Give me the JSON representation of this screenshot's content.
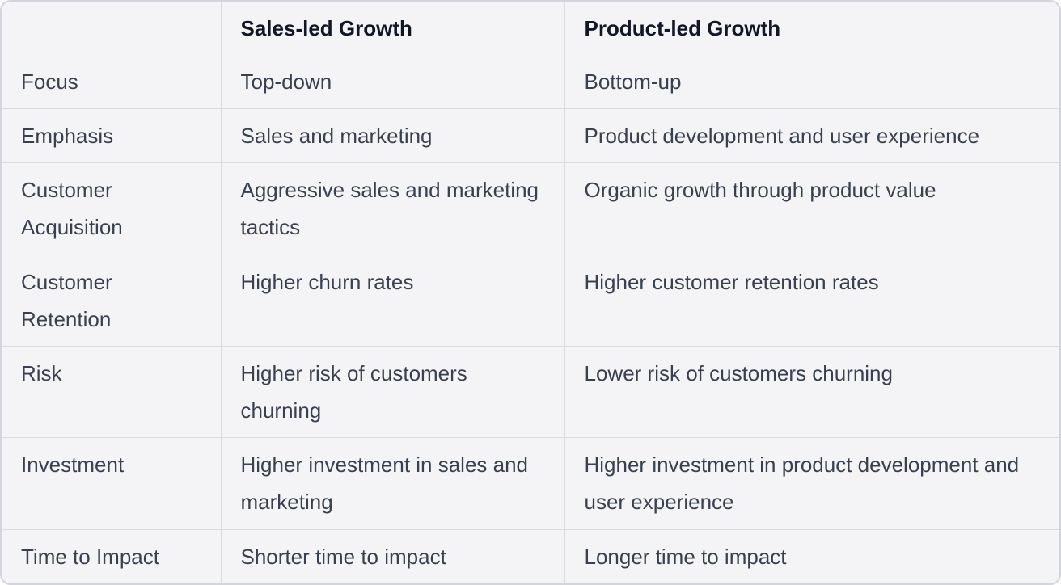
{
  "table": {
    "title": "Sales-led vs Product-led Growth comparison table",
    "colors": {
      "background": "#f4f4f6",
      "grid_border": "#d9d9e0",
      "outer_border": "#d4d4dd",
      "header_text": "#121725",
      "body_text": "#394150"
    },
    "header": {
      "col0": "",
      "col1": "Sales-led Growth",
      "col2": "Product-led Growth"
    },
    "rows": [
      {
        "label": "Focus",
        "sales": "Top-down",
        "product": "Bottom-up"
      },
      {
        "label": "Emphasis",
        "sales": "Sales and marketing",
        "product": "Product development and user experience"
      },
      {
        "label": "Customer Acquisition",
        "sales": "Aggressive sales and marketing tactics",
        "product": "Organic growth through product value"
      },
      {
        "label": "Customer Retention",
        "sales": "Higher churn rates",
        "product": "Higher customer retention rates"
      },
      {
        "label": "Risk",
        "sales": "Higher risk of customers churning",
        "product": "Lower risk of customers churning"
      },
      {
        "label": "Investment",
        "sales": "Higher investment in sales and marketing",
        "product": "Higher investment in product development and user experience"
      },
      {
        "label": "Time to Impact",
        "sales": "Shorter time to impact",
        "product": "Longer time to impact"
      }
    ]
  }
}
